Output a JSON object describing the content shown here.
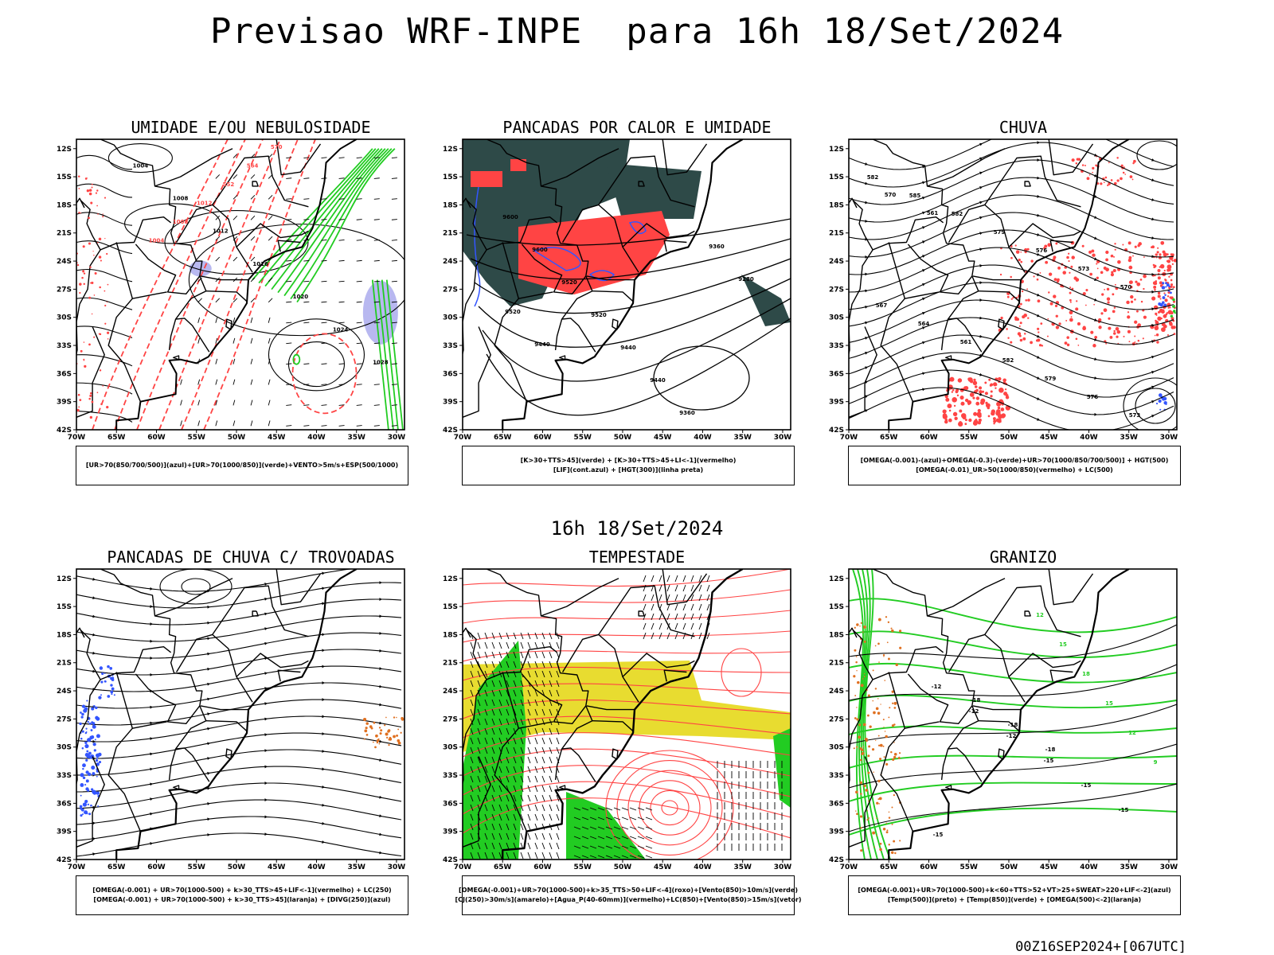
{
  "main_title": "Previsao WRF-INPE  para 16h 18/Set/2024",
  "mid_title": "16h 18/Set/2024",
  "footer": "00Z16SEP2024+[067UTC]",
  "axes": {
    "lat_labels": [
      "12S",
      "15S",
      "18S",
      "21S",
      "24S",
      "27S",
      "30S",
      "33S",
      "36S",
      "39S",
      "42S"
    ],
    "lon_labels": [
      "70W",
      "65W",
      "60W",
      "55W",
      "50W",
      "45W",
      "40W",
      "35W",
      "30W"
    ]
  },
  "panels": [
    {
      "id": "umidade",
      "title": "UMIDADE E/OU NEBULOSIDADE",
      "legend": [
        "[UR>70(850/700/500)](azul)+[UR>70(1000/850)](verde)+VENTO>5m/s+ESP(500/1000)"
      ],
      "labels": [
        "1004",
        "1008",
        "1012",
        "1016",
        "1020",
        "1024",
        "1028",
        "1004",
        "1008",
        "1012",
        "552",
        "564",
        "570",
        "576",
        "540",
        "546",
        "558"
      ]
    },
    {
      "id": "pancadas-calor",
      "title": "PANCADAS POR CALOR E UMIDADE",
      "legend": [
        "[K>30+TTS>45](verde) + [K>30+TTS>45+LI<-1](vermelho)",
        "[LIF](cont.azul) + [HGT(300)](linha preta)"
      ],
      "labels": [
        "9600",
        "9600",
        "9520",
        "9520",
        "9440",
        "9440",
        "9360",
        "9360",
        "9280",
        "9520",
        "9440"
      ]
    },
    {
      "id": "chuva",
      "title": "CHUVA",
      "legend": [
        "[OMEGA(-0.001)-(azul)+OMEGA(-0.3)-(verde)+UR>70(1000/850/700/500)] + HGT(500)",
        "[OMEGA(-0.01)_UR>50(1000/850)(vermelho) + LC(500)"
      ],
      "labels": [
        "582",
        "585",
        "582",
        "579",
        "576",
        "573",
        "570",
        "567",
        "564",
        "561",
        "582",
        "579",
        "576",
        "573",
        "570",
        "561"
      ]
    },
    {
      "id": "pancadas-trovoadas",
      "title": "PANCADAS DE CHUVA C/ TROVOADAS",
      "legend": [
        "[OMEGA(-0.001) + UR>70(1000-500) + k>30_TTS>45+LIF<-1](vermelho) + LC(250)",
        "[OMEGA(-0.001) + UR>70(1000-500) + k>30_TTS>45](laranja) + [DIVG(250)](azul)"
      ],
      "labels": []
    },
    {
      "id": "tempestade",
      "title": "TEMPESTADE",
      "legend": [
        "[OMEGA(-0.001)+UR>70(1000-500)+k>35_TTS>50+LIF<-4](roxo)+[Vento(850)>10m/s](verde)",
        "[CJ(250)>30m/s](amarelo)+[Agua_P(40-60mm)](vermelho)+LC(850)+[Vento(850)>15m/s](vetor)"
      ],
      "labels": []
    },
    {
      "id": "granizo",
      "title": "GRANIZO",
      "legend": [
        "[OMEGA(-0.001)+UR>70(1000-500)+k<60+TTS>52+VT>25+SWEAT>220+LIF<-2](azul)",
        "[Temp(500)](preto) + [Temp(850)](verde) + [OMEGA(500)<-2](laranja)"
      ],
      "labels": [
        "-12",
        "-12",
        "-12",
        "-15",
        "-15",
        "-15",
        "-15",
        "-18",
        "-18",
        "-18",
        "12",
        "15",
        "18",
        "15",
        "12",
        "9"
      ]
    }
  ],
  "colors": {
    "red": "#ff4444",
    "green": "#22cc22",
    "blue": "#3355ff",
    "orange": "#e07020",
    "yellow": "#e8dc30",
    "lavender": "#b8b8f0",
    "darkteal": "#2e4a48"
  }
}
